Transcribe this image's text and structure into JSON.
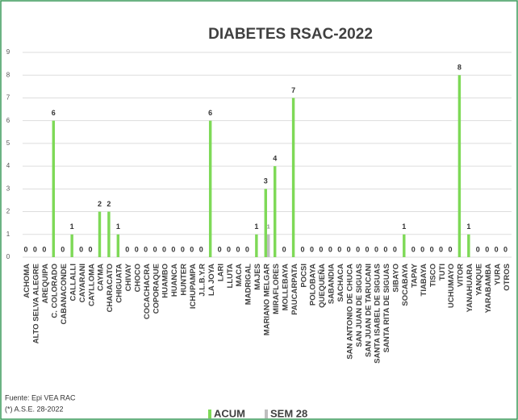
{
  "chart_data": {
    "type": "bar",
    "title": "DIABETES RSAC-2022",
    "categories": [
      "ACHOMA",
      "ALTO SELVA ALEGRE",
      "AREQUIPA",
      "C. COLORADO",
      "CABANACONDE",
      "CALLALLI",
      "CAYARANI",
      "CAYLLOMA",
      "CAYMA",
      "CHARACATO",
      "CHIGUATA",
      "CHIVAY",
      "CHOCO",
      "COCACHACRA",
      "COPORAQUE",
      "HUAMBO",
      "HUANCA",
      "HUNTER",
      "ICHUPAMPA",
      "J.L.B.Y.R",
      "LA JOYA",
      "LARI",
      "LLUTA",
      "MACA",
      "MADRIGAL",
      "MAJES",
      "MARIANO MELGAR",
      "MIRAFLORES",
      "MOLLEBAYA",
      "PAUCARPATA",
      "POCSI",
      "POLOBAYA",
      "QUEQUEÑA",
      "SABANDIA",
      "SACHACA",
      "SAN ANTONIO DE CHUCA",
      "SAN JUAN DE SIGUAS",
      "SAN JUAN DE TARUCANI",
      "SANTA ISABEL DE SIGUAS",
      "SANTA RITA DE SIGUAS",
      "SIBAYO",
      "SOCABAYA",
      "TAPAY",
      "TIABAYA",
      "TISCO",
      "TUTI",
      "UCHUMAYO",
      "VITOR",
      "YANAHUARA",
      "YANQUE",
      "YARABAMBA",
      "YURA",
      "OTROS"
    ],
    "series": [
      {
        "name": "ACUM",
        "color": "#7ed957",
        "values": [
          0,
          0,
          0,
          6,
          0,
          1,
          0,
          0,
          2,
          2,
          1,
          0,
          0,
          0,
          0,
          0,
          0,
          0,
          0,
          0,
          6,
          0,
          0,
          0,
          0,
          1,
          3,
          4,
          0,
          7,
          0,
          0,
          0,
          0,
          0,
          0,
          0,
          0,
          0,
          0,
          0,
          1,
          0,
          0,
          0,
          0,
          0,
          8,
          1,
          0,
          0,
          0,
          0
        ]
      },
      {
        "name": "SEM 28",
        "color": "#bfbfbf",
        "values": [
          0,
          0,
          0,
          0,
          0,
          0,
          0,
          0,
          0,
          0,
          0,
          0,
          0,
          0,
          0,
          0,
          0,
          0,
          0,
          0,
          0,
          0,
          0,
          0,
          0,
          0,
          1,
          0,
          0,
          0,
          0,
          0,
          0,
          0,
          0,
          0,
          0,
          0,
          0,
          0,
          0,
          0,
          0,
          0,
          0,
          0,
          0,
          0,
          0,
          0,
          0,
          0,
          0
        ]
      }
    ],
    "ylim": [
      0,
      9
    ],
    "yticks": [
      0,
      1,
      2,
      3,
      4,
      5,
      6,
      7,
      8,
      9
    ],
    "grid": true,
    "notes": [
      "Fuente: Epi VEA RAC",
      "(*) A.S.E. 28-2022"
    ]
  }
}
